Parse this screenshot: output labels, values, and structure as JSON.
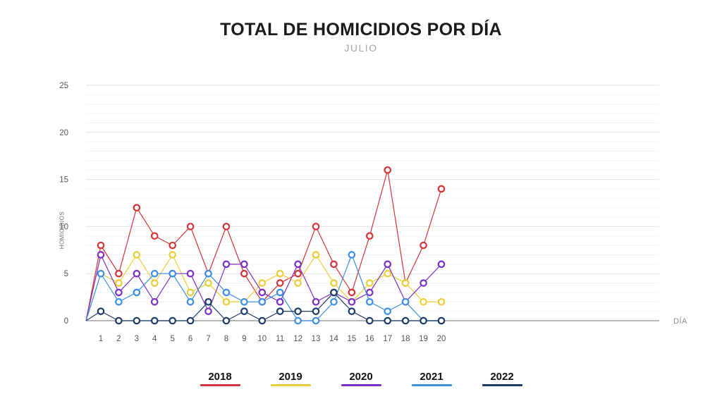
{
  "title": "TOTAL DE HOMICIDIOS POR DÍA",
  "subtitle": "JULIO",
  "chart_data": {
    "type": "line",
    "title": "TOTAL DE HOMICIDIOS POR DÍA",
    "subtitle": "JULIO",
    "xlabel": "DÍA",
    "ylabel": "HOMICIDIOS",
    "x": [
      1,
      2,
      3,
      4,
      5,
      6,
      7,
      8,
      9,
      10,
      11,
      12,
      13,
      14,
      15,
      16,
      17,
      18,
      19,
      20
    ],
    "ylim": [
      0,
      25
    ],
    "yticks": [
      0,
      5,
      10,
      15,
      20,
      25
    ],
    "grid": "horizontal; faint minor line every 1, light major line every 5",
    "legend_position": "bottom",
    "marker": "open-circle",
    "axis_color": "#8b8b8b",
    "series": [
      {
        "name": "2018",
        "color": "#d13438",
        "values": [
          8,
          5,
          12,
          9,
          8,
          10,
          5,
          10,
          5,
          2,
          4,
          5,
          10,
          6,
          3,
          9,
          16,
          4,
          8,
          14
        ]
      },
      {
        "name": "2019",
        "color": "#e8cf3a",
        "values": [
          5,
          4,
          7,
          4,
          7,
          3,
          4,
          2,
          2,
          4,
          5,
          4,
          7,
          4,
          2,
          4,
          5,
          4,
          2,
          2
        ]
      },
      {
        "name": "2020",
        "color": "#7a30c4",
        "values": [
          7,
          3,
          5,
          2,
          5,
          5,
          1,
          6,
          6,
          3,
          2,
          6,
          2,
          3,
          2,
          3,
          6,
          2,
          4,
          6
        ]
      },
      {
        "name": "2021",
        "color": "#3e8ee0",
        "values": [
          5,
          2,
          3,
          5,
          5,
          2,
          5,
          3,
          2,
          2,
          3,
          0,
          0,
          2,
          7,
          2,
          1,
          2,
          0,
          0
        ]
      },
      {
        "name": "2022",
        "color": "#1c3a66",
        "values": [
          1,
          0,
          0,
          0,
          0,
          0,
          2,
          0,
          1,
          0,
          1,
          1,
          1,
          3,
          1,
          0,
          0,
          0,
          0,
          0
        ]
      }
    ]
  }
}
